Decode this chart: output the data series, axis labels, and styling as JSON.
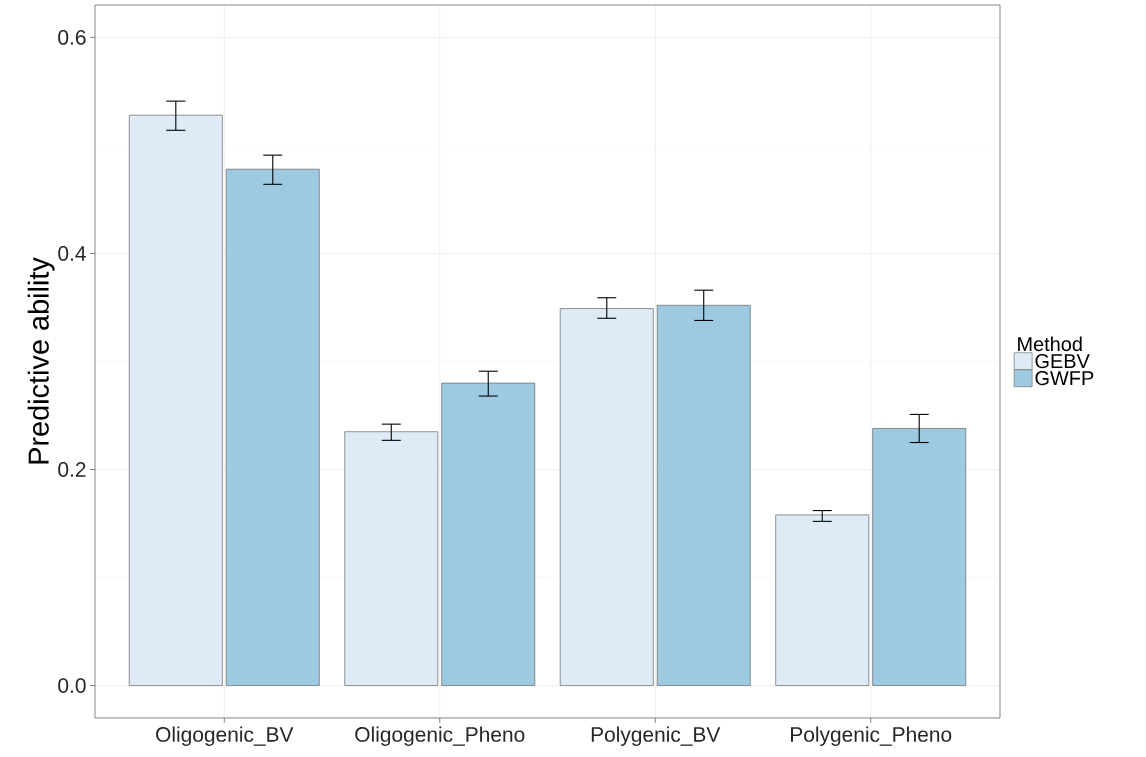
{
  "chart_data": {
    "type": "bar",
    "ylabel": "Predictive ability",
    "legend_title": "Method",
    "categories": [
      "Oligogenic_BV",
      "Oligogenic_Pheno",
      "Polygenic_BV",
      "Polygenic_Pheno"
    ],
    "series": [
      {
        "name": "GEBV",
        "color": "#deebf7",
        "values": [
          0.528,
          0.235,
          0.349,
          0.158
        ],
        "errors": [
          [
            0.514,
            0.541
          ],
          [
            0.227,
            0.242
          ],
          [
            0.34,
            0.359
          ],
          [
            0.152,
            0.162
          ]
        ]
      },
      {
        "name": "GWFP",
        "color": "#9ecae1",
        "values": [
          0.478,
          0.28,
          0.352,
          0.238
        ],
        "errors": [
          [
            0.464,
            0.491
          ],
          [
            0.268,
            0.291
          ],
          [
            0.338,
            0.366
          ],
          [
            0.225,
            0.251
          ]
        ]
      }
    ],
    "ylim": [
      -0.03,
      0.63
    ],
    "yticks": [
      {
        "value": 0,
        "label": "0.0"
      },
      {
        "value": 0.2,
        "label": "0.2"
      },
      {
        "value": 0.4,
        "label": "0.4"
      },
      {
        "value": 0.6,
        "label": "0.6"
      }
    ],
    "grid": true,
    "legend": "right"
  }
}
